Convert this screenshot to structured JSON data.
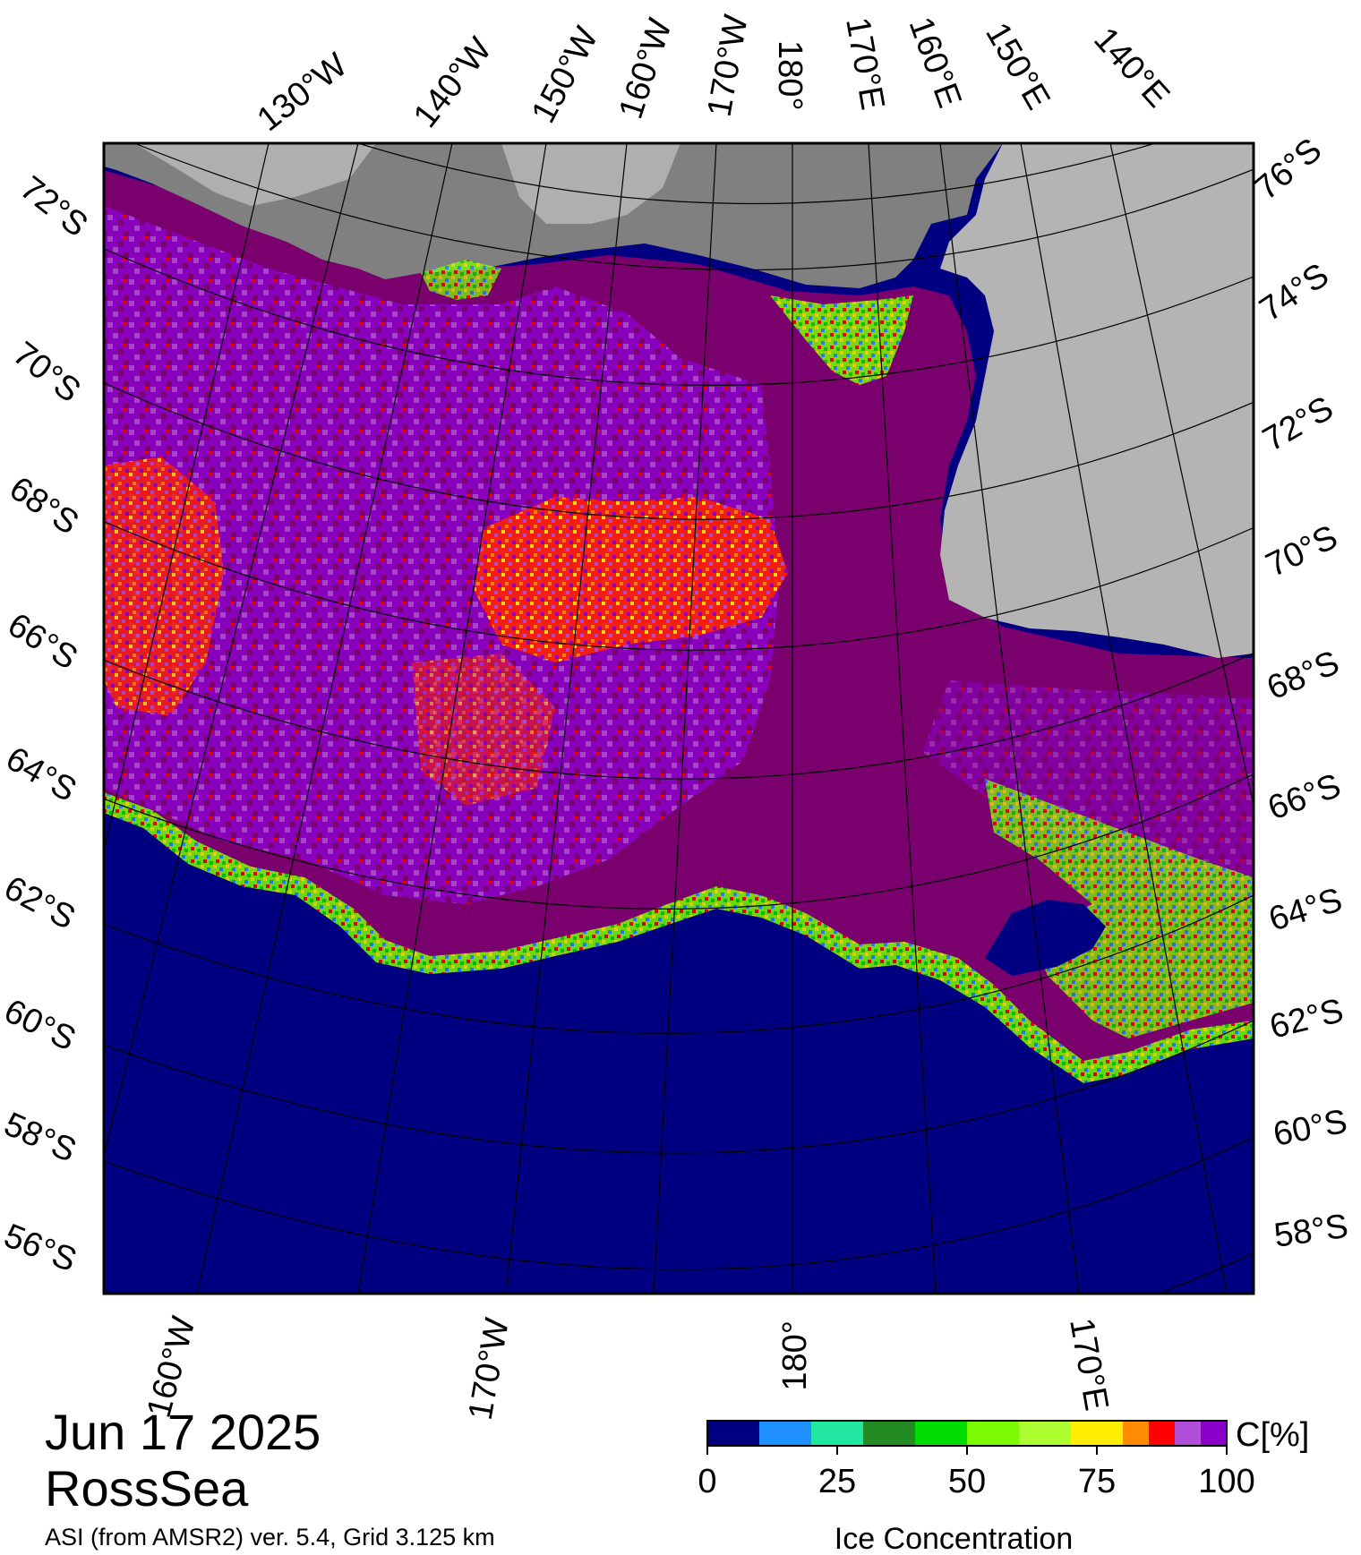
{
  "map": {
    "region": "RossSea",
    "date": "Jun 17 2025",
    "source": "ASI (from AMSR2) ver. 5.4,  Grid 3.125 km",
    "colors": {
      "open_water": "#000080",
      "ice_full": "#7a006e",
      "ice_high": "#8a00c8",
      "ice_mid": "#b050d8",
      "land": "#b4b4b4",
      "ice_shelf": "#808080",
      "frame": "#000000"
    },
    "top_longitude_labels": [
      "130°W",
      "140°W",
      "150°W",
      "160°W",
      "170°W",
      "180°",
      "170°E",
      "160°E",
      "150°E",
      "140°E"
    ],
    "bottom_longitude_labels": [
      "160°W",
      "170°W",
      "180°",
      "170°E"
    ],
    "left_latitude_labels": [
      "72°S",
      "70°S",
      "68°S",
      "66°S",
      "64°S",
      "62°S",
      "60°S",
      "58°S",
      "56°S"
    ],
    "right_latitude_labels": [
      "76°S",
      "74°S",
      "72°S",
      "70°S",
      "68°S",
      "66°S",
      "64°S",
      "62°S",
      "60°S",
      "58°S"
    ]
  },
  "colorbar": {
    "title": "Ice Concentration",
    "unit": "C[%]",
    "ticks": [
      "0",
      "25",
      "50",
      "75",
      "100"
    ],
    "bins": [
      {
        "from": 0,
        "to": 10,
        "color": "#000080"
      },
      {
        "from": 10,
        "to": 20,
        "color": "#1e90ff"
      },
      {
        "from": 20,
        "to": 30,
        "color": "#20e8a0"
      },
      {
        "from": 30,
        "to": 40,
        "color": "#228b22"
      },
      {
        "from": 40,
        "to": 50,
        "color": "#00dd00"
      },
      {
        "from": 50,
        "to": 60,
        "color": "#7cfc00"
      },
      {
        "from": 60,
        "to": 70,
        "color": "#adff2f"
      },
      {
        "from": 70,
        "to": 80,
        "color": "#ffee00"
      },
      {
        "from": 80,
        "to": 85,
        "color": "#ff8c00"
      },
      {
        "from": 85,
        "to": 90,
        "color": "#ff0000"
      },
      {
        "from": 90,
        "to": 95,
        "color": "#b050d8"
      },
      {
        "from": 95,
        "to": 100,
        "color": "#8a00c8"
      }
    ]
  }
}
